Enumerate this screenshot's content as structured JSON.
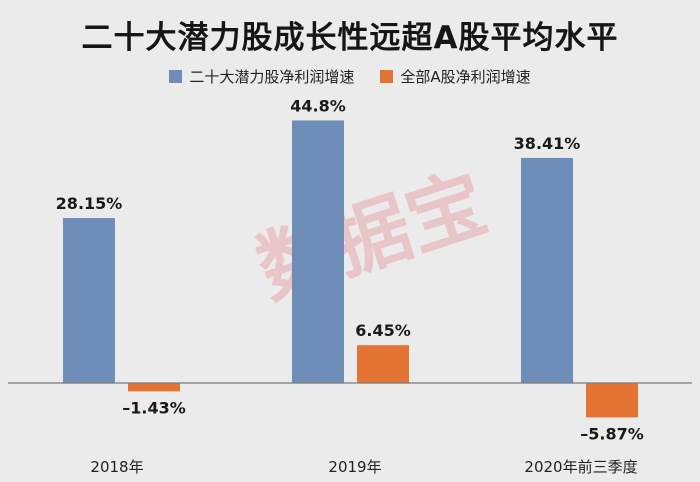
{
  "watermark_text": "数据宝",
  "colors": {
    "series_1": "#6e8db9",
    "series_2": "#e37434",
    "axis": "#7a7a7a"
  },
  "chart_data": {
    "type": "bar",
    "title": "二十大潜力股成长性远超A股平均水平",
    "categories": [
      "2018年",
      "2019年",
      "2020年前三季度"
    ],
    "series": [
      {
        "name": "二十大潜力股净利润增速",
        "values": [
          28.15,
          44.8,
          38.41
        ],
        "labels": [
          "28.15%",
          "44.8%",
          "38.41%"
        ]
      },
      {
        "name": "全部A股净利润增速",
        "values": [
          -1.43,
          6.45,
          -5.87
        ],
        "labels": [
          "–1.43%",
          "6.45%",
          "–5.87%"
        ]
      }
    ],
    "legend_position": "top",
    "grid": false,
    "xlabel": "",
    "ylabel": "",
    "ylim": [
      -8,
      48
    ]
  }
}
